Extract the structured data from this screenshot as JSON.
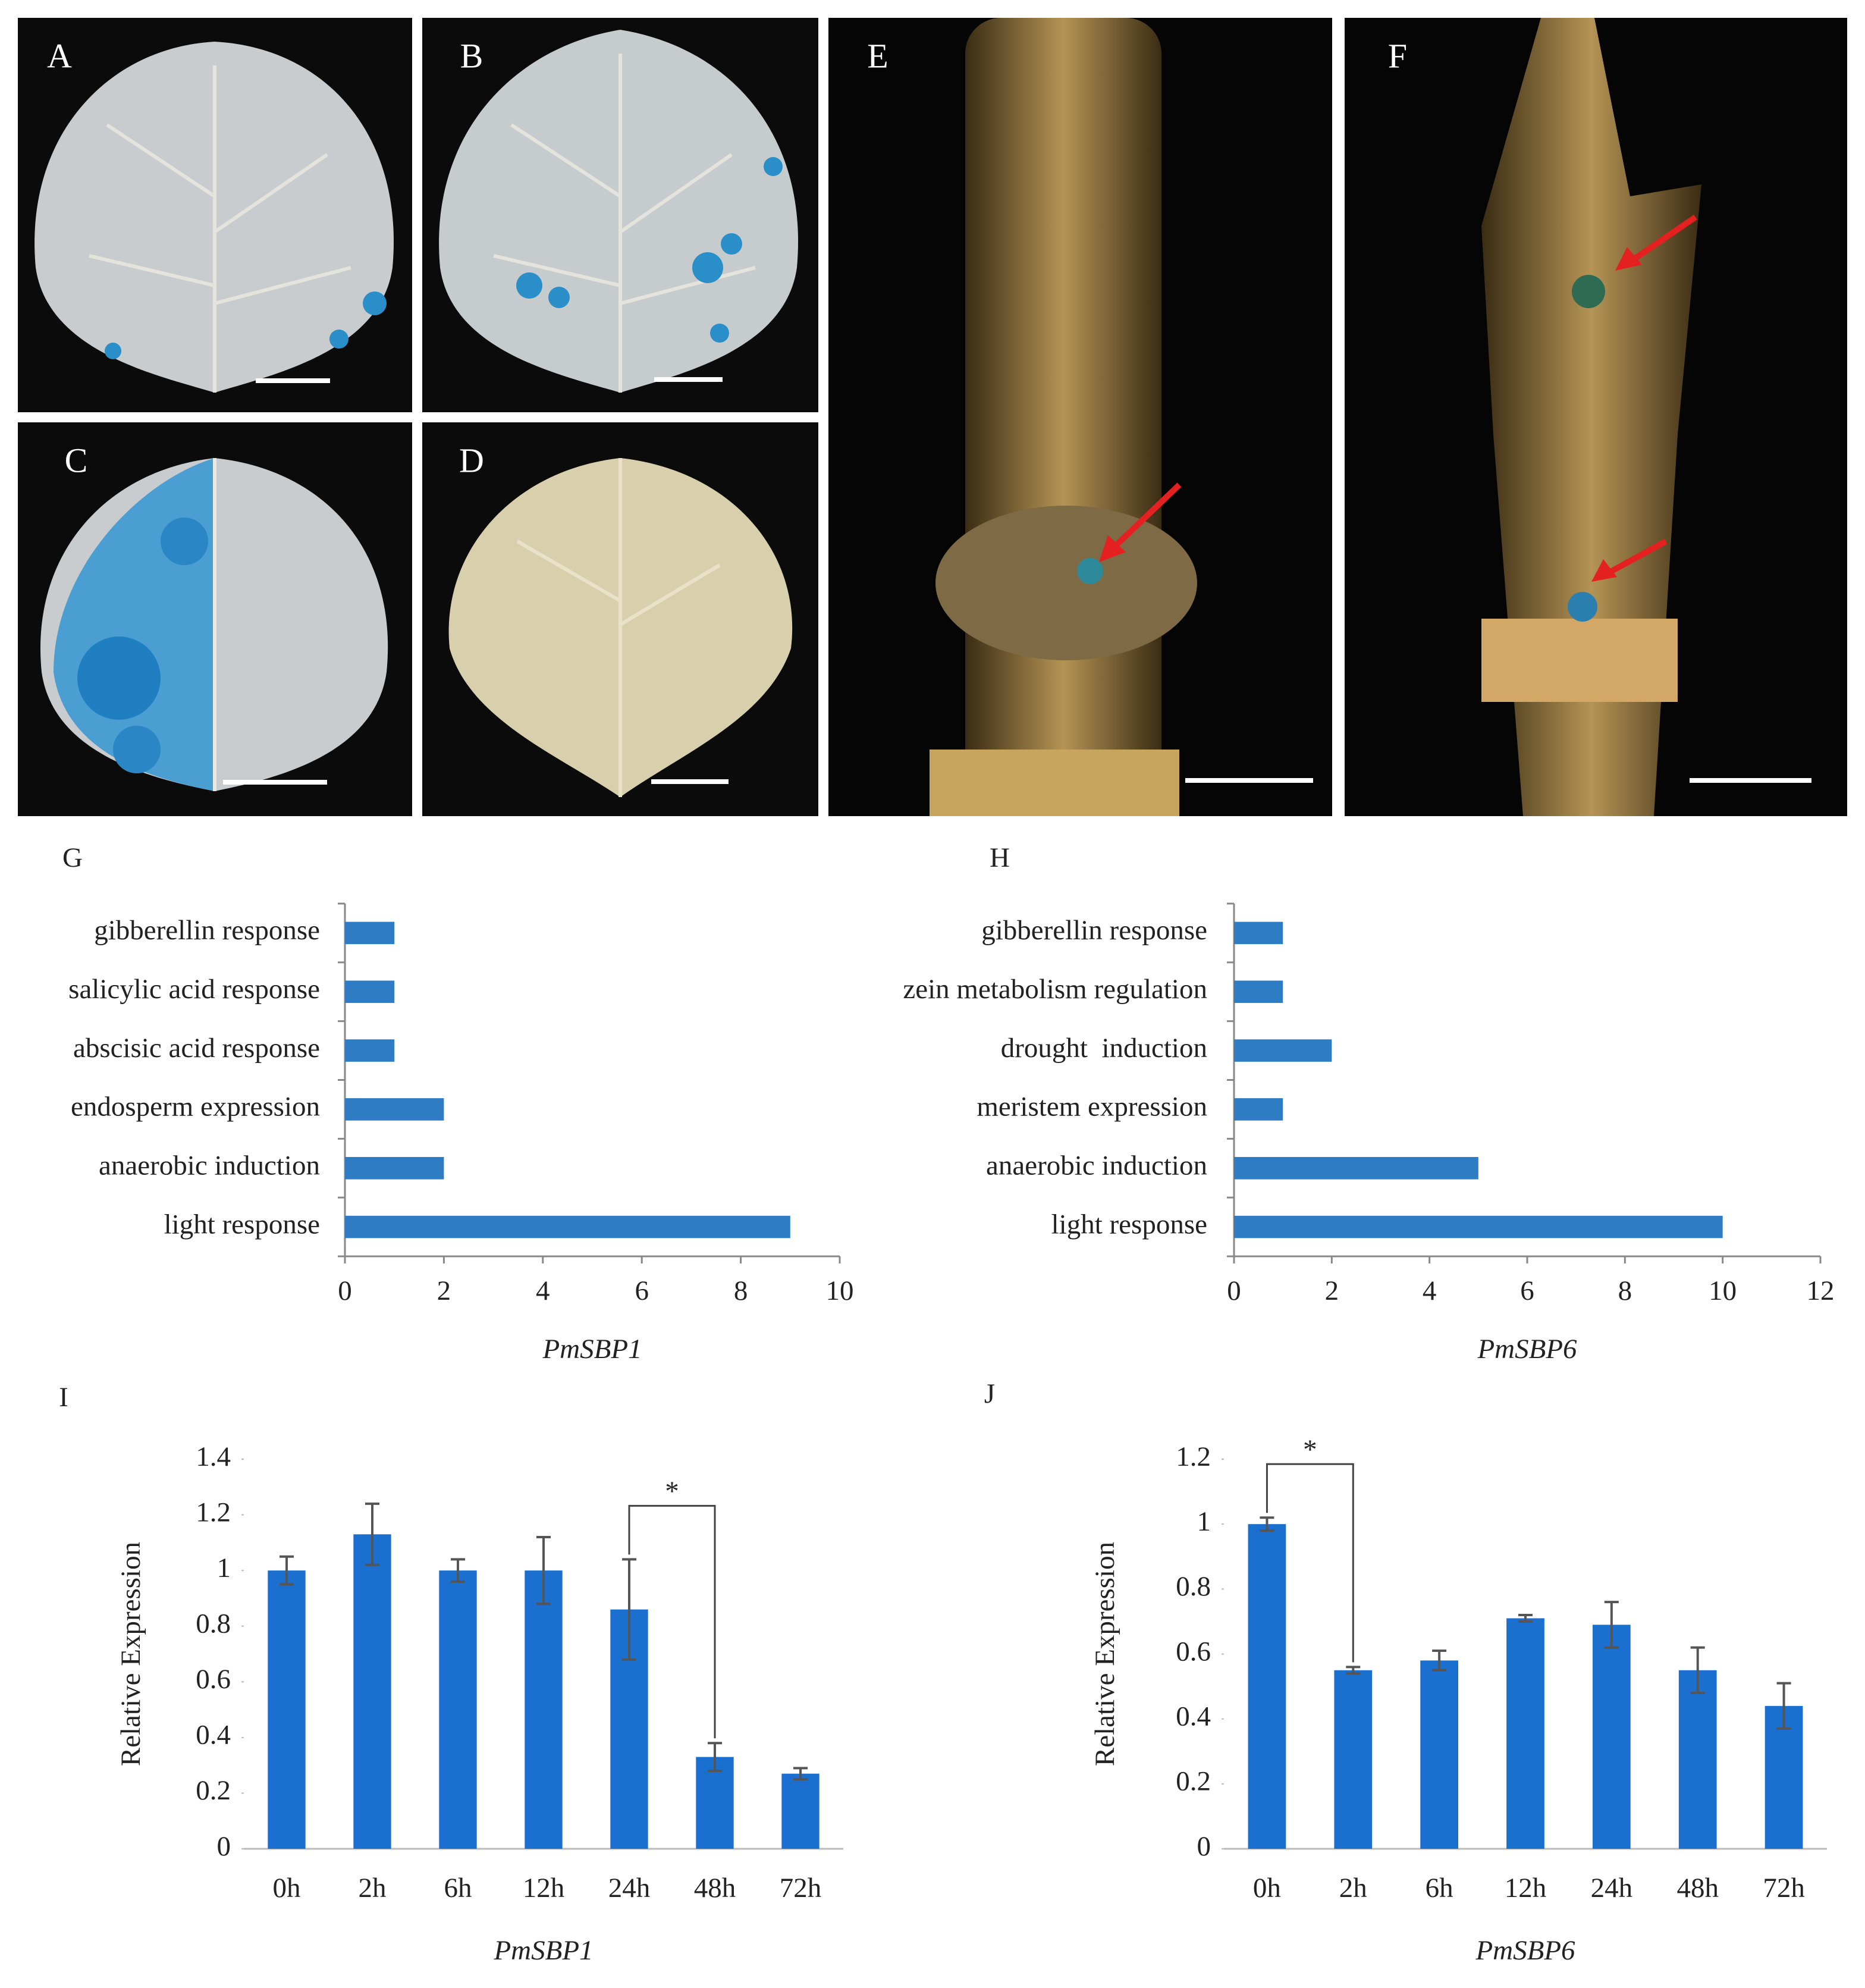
{
  "photo_panels": [
    {
      "label": "A"
    },
    {
      "label": "B"
    },
    {
      "label": "C"
    },
    {
      "label": "D"
    },
    {
      "label": "E"
    },
    {
      "label": "F"
    }
  ],
  "chart_data": [
    {
      "type": "barh",
      "panel_label": "G",
      "xlabel": "PmSBP1",
      "color": "#2e7dc4",
      "categories": [
        "gibberellin response",
        "salicylic acid response",
        "abscisic acid response",
        "endosperm expression",
        "anaerobic induction",
        "light response"
      ],
      "values": [
        1,
        1,
        1,
        2,
        2,
        9
      ],
      "xlim": [
        0,
        10
      ],
      "xticks": [
        0,
        2,
        4,
        6,
        8,
        10
      ]
    },
    {
      "type": "barh",
      "panel_label": "H",
      "xlabel": "PmSBP6",
      "color": "#2e7dc4",
      "categories": [
        "gibberellin response",
        "zein metabolism regulation",
        "drought  induction",
        "meristem expression",
        "anaerobic induction",
        "light response"
      ],
      "values": [
        1,
        1,
        2,
        1,
        5,
        10
      ],
      "xlim": [
        0,
        12
      ],
      "xticks": [
        0,
        2,
        4,
        6,
        8,
        10,
        12
      ]
    },
    {
      "type": "bar",
      "panel_label": "I",
      "xlabel": "PmSBP1",
      "ylabel": "Relative Expression",
      "color": "#1a6fcf",
      "categories": [
        "0h",
        "2h",
        "6h",
        "12h",
        "24h",
        "48h",
        "72h"
      ],
      "values": [
        1.0,
        1.13,
        1.0,
        1.0,
        0.86,
        0.33,
        0.27
      ],
      "errors": [
        0.05,
        0.11,
        0.04,
        0.12,
        0.18,
        0.05,
        0.02
      ],
      "ylim": [
        0,
        1.4
      ],
      "yticks": [
        0,
        0.2,
        0.4,
        0.6,
        0.8,
        1,
        1.2,
        1.4
      ],
      "significance": {
        "from": "24h",
        "to": "48h",
        "label": "*"
      }
    },
    {
      "type": "bar",
      "panel_label": "J",
      "xlabel": "PmSBP6",
      "ylabel": "Relative Expression",
      "color": "#1a6fcf",
      "categories": [
        "0h",
        "2h",
        "6h",
        "12h",
        "24h",
        "48h",
        "72h"
      ],
      "values": [
        1.0,
        0.55,
        0.58,
        0.71,
        0.69,
        0.55,
        0.44
      ],
      "errors": [
        0.02,
        0.01,
        0.03,
        0.01,
        0.07,
        0.07,
        0.07
      ],
      "ylim": [
        0,
        1.2
      ],
      "yticks": [
        0,
        0.2,
        0.4,
        0.6,
        0.8,
        1,
        1.2
      ],
      "significance": {
        "from": "0h",
        "to": "2h",
        "label": "*"
      }
    }
  ]
}
